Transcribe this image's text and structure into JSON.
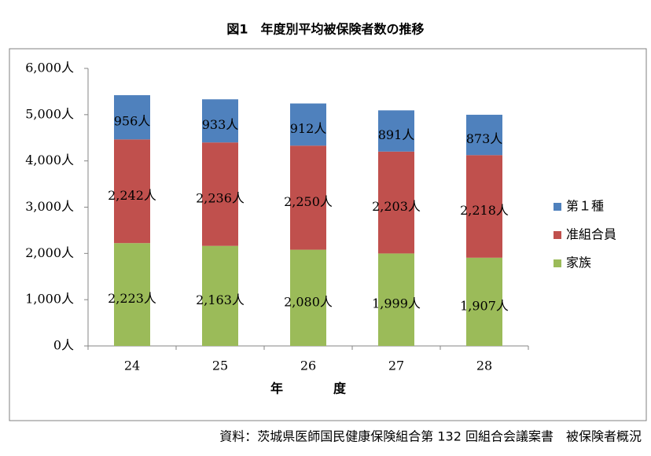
{
  "chart_data": {
    "type": "stacked_bar",
    "title": "図1　年度別平均被保険者数の推移",
    "x_label": "年　　　　度",
    "source": "資料：茨城県医師国民健康保険組合第 132 回組合会議案書　被保険者概況",
    "categories": [
      "24",
      "25",
      "26",
      "27",
      "28"
    ],
    "series": [
      {
        "name": "家族",
        "color": "#9bbb59",
        "values": [
          2223,
          2163,
          2080,
          1999,
          1907
        ],
        "value_labels": [
          "2,223人",
          "2,163人",
          "2,080人",
          "1,999人",
          "1,907人"
        ]
      },
      {
        "name": "准組合員",
        "color": "#c0504d",
        "values": [
          2242,
          2236,
          2250,
          2203,
          2218
        ],
        "value_labels": [
          "2,242人",
          "2,236人",
          "2,250人",
          "2,203人",
          "2,218人"
        ]
      },
      {
        "name": "第１種",
        "color": "#4f81bd",
        "values": [
          956,
          933,
          912,
          891,
          873
        ],
        "value_labels": [
          "956人",
          "933人",
          "912人",
          "891人",
          "873人"
        ]
      }
    ],
    "ylim": [
      0,
      6000
    ],
    "yticks": [
      {
        "value": 0,
        "label": "0人"
      },
      {
        "value": 1000,
        "label": "1,000人"
      },
      {
        "value": 2000,
        "label": "2,000人"
      },
      {
        "value": 3000,
        "label": "3,000人"
      },
      {
        "value": 4000,
        "label": "4,000人"
      },
      {
        "value": 5000,
        "label": "5,000人"
      },
      {
        "value": 6000,
        "label": "6,000人"
      }
    ],
    "grid": false,
    "legend": "right"
  }
}
